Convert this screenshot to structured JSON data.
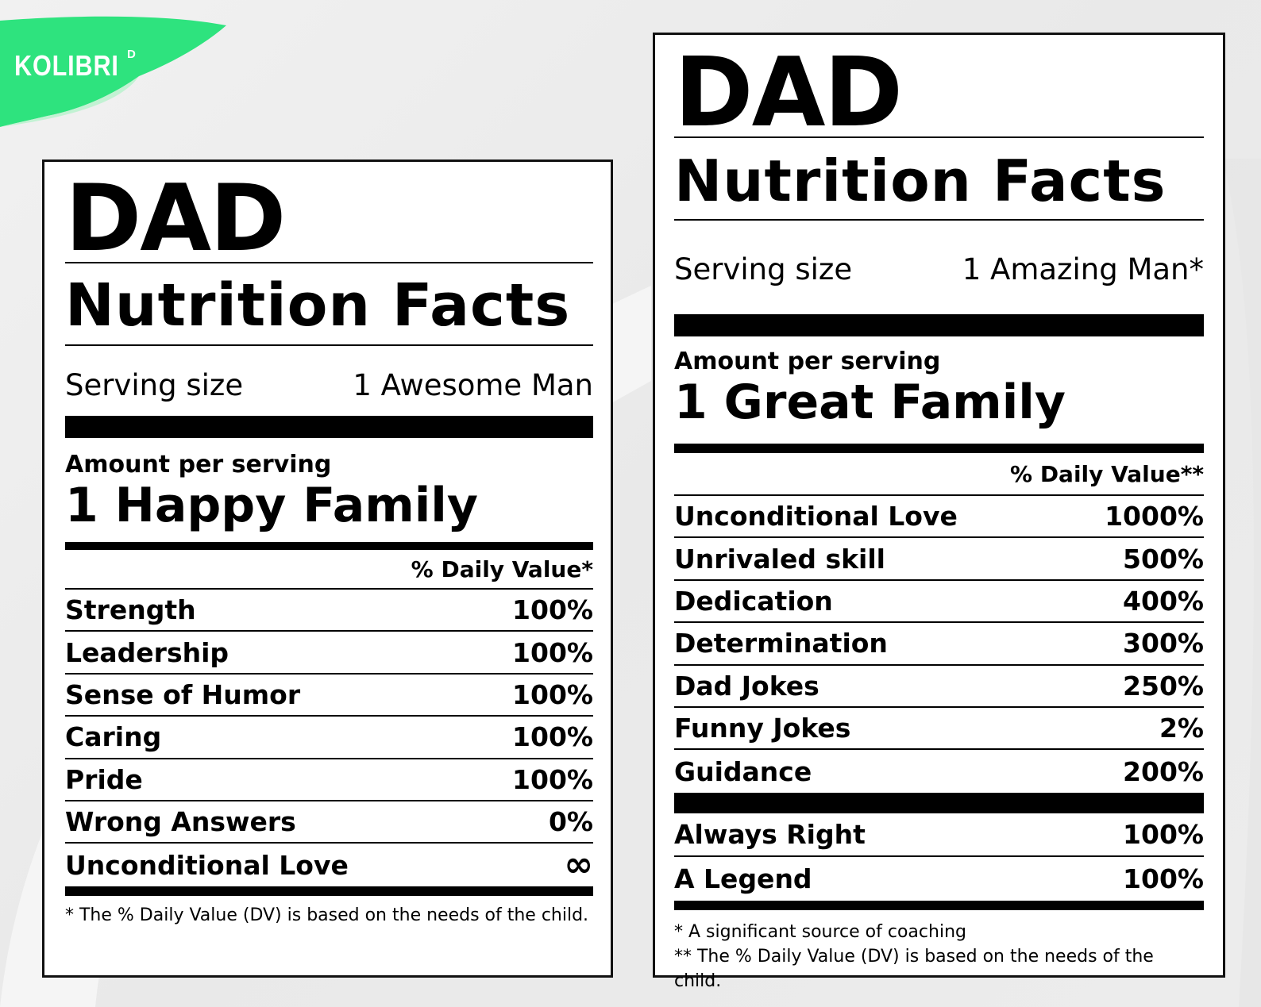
{
  "brand": {
    "logo_text": "KOLIBRI",
    "logo_sup": "D",
    "accent": "#2ee37e"
  },
  "label_a": {
    "heading": "DAD",
    "title": "Nutrition Facts",
    "serving_label": "Serving size",
    "serving_value": "1 Awesome Man",
    "amount_label": "Amount per serving",
    "amount_value": "1 Happy Family",
    "dv_header": "% Daily Value*",
    "rows": [
      {
        "name": "Strength",
        "value": "100%"
      },
      {
        "name": "Leadership",
        "value": "100%"
      },
      {
        "name": "Sense of Humor",
        "value": "100%"
      },
      {
        "name": "Caring",
        "value": "100%"
      },
      {
        "name": "Pride",
        "value": "100%"
      },
      {
        "name": "Wrong Answers",
        "value": "0%"
      },
      {
        "name": "Unconditional Love",
        "value": "∞"
      }
    ],
    "footnote": "* The % Daily Value (DV) is based on the needs of the child."
  },
  "label_b": {
    "heading": "DAD",
    "title": "Nutrition Facts",
    "serving_label": "Serving size",
    "serving_value": "1 Amazing Man*",
    "amount_label": "Amount per serving",
    "amount_value": "1 Great Family",
    "dv_header": "% Daily Value**",
    "rows": [
      {
        "name": "Unconditional Love",
        "value": "1000%"
      },
      {
        "name": "Unrivaled skill",
        "value": "500%"
      },
      {
        "name": "Dedication",
        "value": "400%"
      },
      {
        "name": "Determination",
        "value": "300%"
      },
      {
        "name": "Dad Jokes",
        "value": "250%"
      },
      {
        "name": "Funny Jokes",
        "value": "2%"
      },
      {
        "name": "Guidance",
        "value": "200%"
      }
    ],
    "extra_rows": [
      {
        "name": "Always Right",
        "value": "100%"
      },
      {
        "name": "A Legend",
        "value": "100%"
      }
    ],
    "footnotes": [
      "* A significant source of coaching",
      "** The % Daily Value (DV) is based on the needs of the child."
    ]
  }
}
